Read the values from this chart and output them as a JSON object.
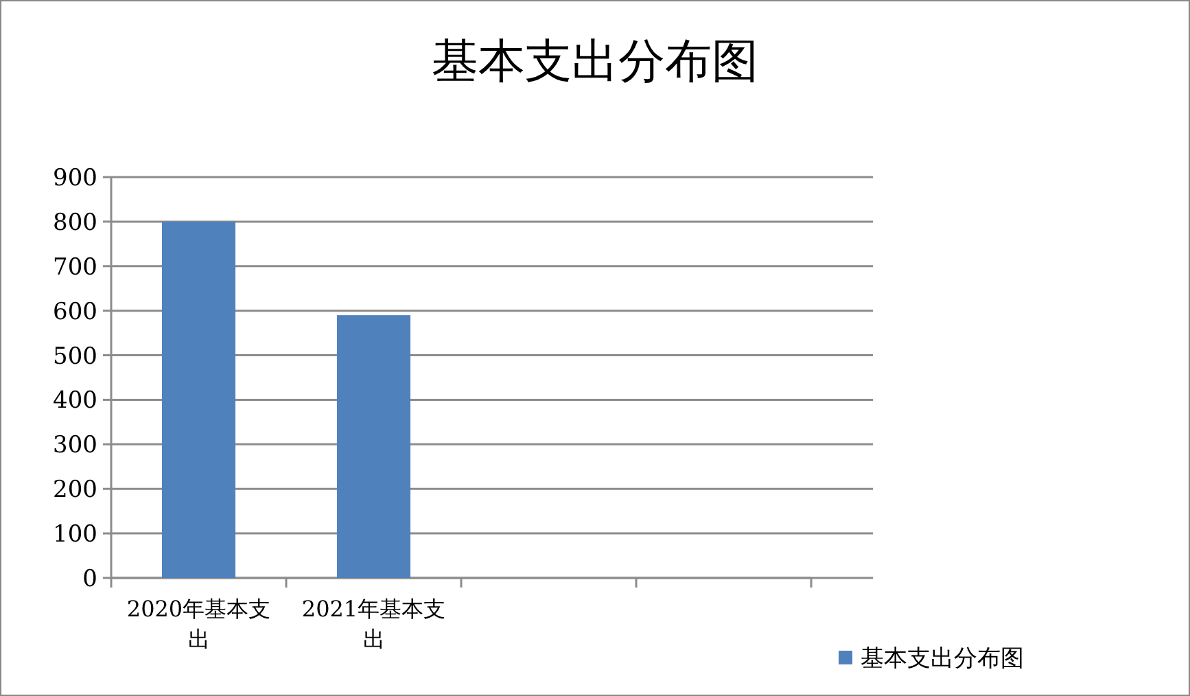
{
  "chart_data": {
    "type": "bar",
    "title": "基本支出分布图",
    "categories": [
      "2020年基本支出",
      "2021年基本支出",
      null,
      null
    ],
    "series": [
      {
        "name": "基本支出分布图",
        "color": "#4f81bd",
        "values": [
          800,
          590,
          null,
          null
        ]
      }
    ],
    "ylim": [
      0,
      900
    ],
    "yticks": [
      0,
      100,
      200,
      300,
      400,
      500,
      600,
      700,
      800,
      900
    ],
    "grid": "y",
    "legend": "bottom right"
  }
}
